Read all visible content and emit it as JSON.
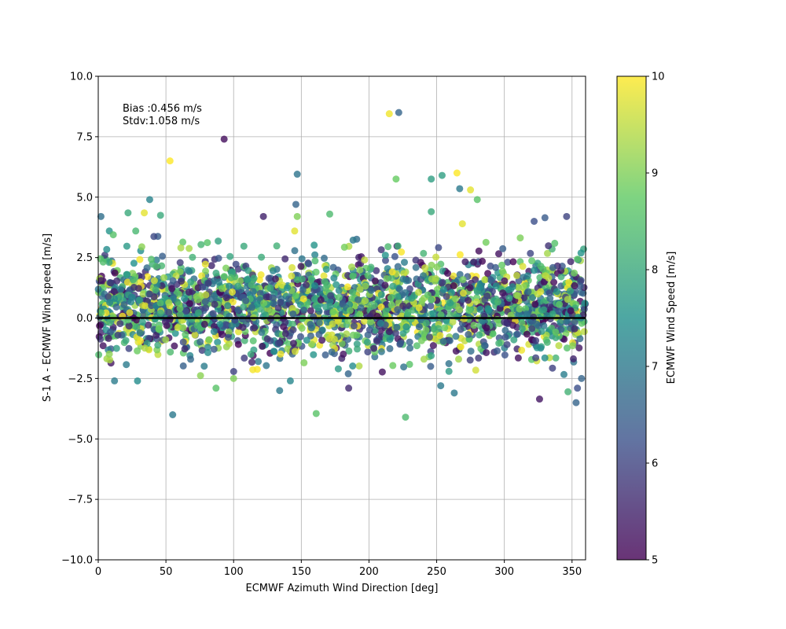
{
  "chart_data": {
    "type": "scatter",
    "xlabel": "ECMWF Azimuth Wind Direction [deg]",
    "ylabel": "S-1 A - ECMWF Wind speed [m/s]",
    "xlim": [
      0,
      360
    ],
    "ylim": [
      -10,
      10
    ],
    "xticks": [
      "0",
      "50",
      "100",
      "150",
      "200",
      "250",
      "300",
      "350"
    ],
    "yticks": [
      "−10.0",
      "−7.5",
      "−5.0",
      "−2.5",
      "0.0",
      "2.5",
      "5.0",
      "7.5",
      "10.0"
    ],
    "grid": true,
    "annotation": {
      "bias": "Bias :0.456 m/s",
      "stdv": "Stdv:1.058 m/s"
    },
    "reference_line": {
      "y": 0,
      "color": "#000000"
    },
    "colorbar": {
      "label": "ECMWF Wind Speed [m/s]",
      "range": [
        5,
        10
      ],
      "ticks": [
        "5",
        "6",
        "7",
        "8",
        "9",
        "10"
      ],
      "colormap": "viridis",
      "colors": [
        "#440154",
        "#3b528b",
        "#21918c",
        "#5ec962",
        "#fde725"
      ]
    },
    "marker_alpha": 0.8,
    "bulk_cloud": {
      "count": 2400,
      "y_mean": 0.456,
      "y_std": 1.058,
      "speed_range": [
        5,
        10
      ]
    },
    "points": [
      {
        "x": 2,
        "y": 4.2,
        "c": 6.8
      },
      {
        "x": 22,
        "y": 4.35,
        "c": 8.0
      },
      {
        "x": 34,
        "y": 4.35,
        "c": 9.8
      },
      {
        "x": 38,
        "y": 4.9,
        "c": 7.2
      },
      {
        "x": 46,
        "y": 4.25,
        "c": 8.0
      },
      {
        "x": 53,
        "y": 6.5,
        "c": 10.0
      },
      {
        "x": 93,
        "y": 7.4,
        "c": 5.2
      },
      {
        "x": 122,
        "y": 4.2,
        "c": 5.5
      },
      {
        "x": 146,
        "y": 4.7,
        "c": 6.6
      },
      {
        "x": 147,
        "y": 5.95,
        "c": 6.9
      },
      {
        "x": 147,
        "y": 4.2,
        "c": 9.0
      },
      {
        "x": 171,
        "y": 4.3,
        "c": 8.4
      },
      {
        "x": 215,
        "y": 8.45,
        "c": 9.9
      },
      {
        "x": 222,
        "y": 8.5,
        "c": 6.6
      },
      {
        "x": 220,
        "y": 5.75,
        "c": 8.8
      },
      {
        "x": 246,
        "y": 5.75,
        "c": 7.8
      },
      {
        "x": 246,
        "y": 4.4,
        "c": 8.0
      },
      {
        "x": 254,
        "y": 5.9,
        "c": 7.8
      },
      {
        "x": 265,
        "y": 6.0,
        "c": 10.0
      },
      {
        "x": 267,
        "y": 5.35,
        "c": 7.0
      },
      {
        "x": 275,
        "y": 5.3,
        "c": 9.8
      },
      {
        "x": 280,
        "y": 4.9,
        "c": 8.6
      },
      {
        "x": 269,
        "y": 3.9,
        "c": 9.8
      },
      {
        "x": 322,
        "y": 4.0,
        "c": 6.2
      },
      {
        "x": 330,
        "y": 4.15,
        "c": 6.4
      },
      {
        "x": 346,
        "y": 4.2,
        "c": 6.0
      },
      {
        "x": 55,
        "y": -4.0,
        "c": 7.0
      },
      {
        "x": 161,
        "y": -3.95,
        "c": 8.6
      },
      {
        "x": 227,
        "y": -4.1,
        "c": 8.4
      },
      {
        "x": 326,
        "y": -3.35,
        "c": 5.3
      },
      {
        "x": 134,
        "y": -3.0,
        "c": 7.0
      },
      {
        "x": 263,
        "y": -3.1,
        "c": 7.0
      },
      {
        "x": 87,
        "y": -2.9,
        "c": 8.6
      },
      {
        "x": 185,
        "y": -2.9,
        "c": 5.6
      },
      {
        "x": 353,
        "y": -3.5,
        "c": 6.6
      },
      {
        "x": 354,
        "y": -2.9,
        "c": 6.2
      },
      {
        "x": 347,
        "y": -3.05,
        "c": 8.2
      },
      {
        "x": 29,
        "y": -2.6,
        "c": 7.4
      },
      {
        "x": 100,
        "y": -2.5,
        "c": 9.0
      },
      {
        "x": 253,
        "y": -2.8,
        "c": 7.0
      },
      {
        "x": 357,
        "y": -2.5,
        "c": 6.6
      }
    ]
  }
}
